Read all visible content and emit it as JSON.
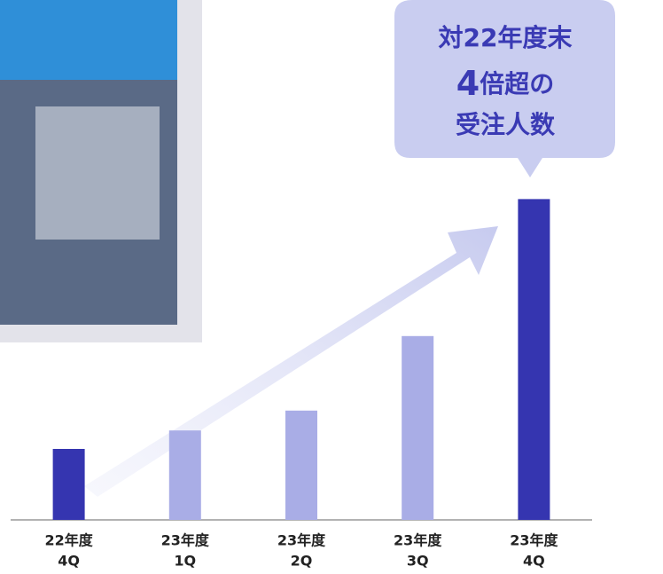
{
  "chart_data": {
    "type": "bar",
    "annotation": [
      "対22年度末",
      "4",
      "倍超の",
      "受注人数"
    ],
    "categories": [
      [
        "22年度",
        "4Q"
      ],
      [
        "23年度",
        "1Q"
      ],
      [
        "23年度",
        "2Q"
      ],
      [
        "23年度",
        "3Q"
      ],
      [
        "23年度",
        "4Q"
      ]
    ],
    "values": [
      100,
      126,
      154,
      259,
      452
    ],
    "colors": [
      "#3535b0",
      "#a9ade6",
      "#a9ade6",
      "#a9ade6",
      "#3535b0"
    ],
    "ylim": [
      0,
      460
    ]
  }
}
